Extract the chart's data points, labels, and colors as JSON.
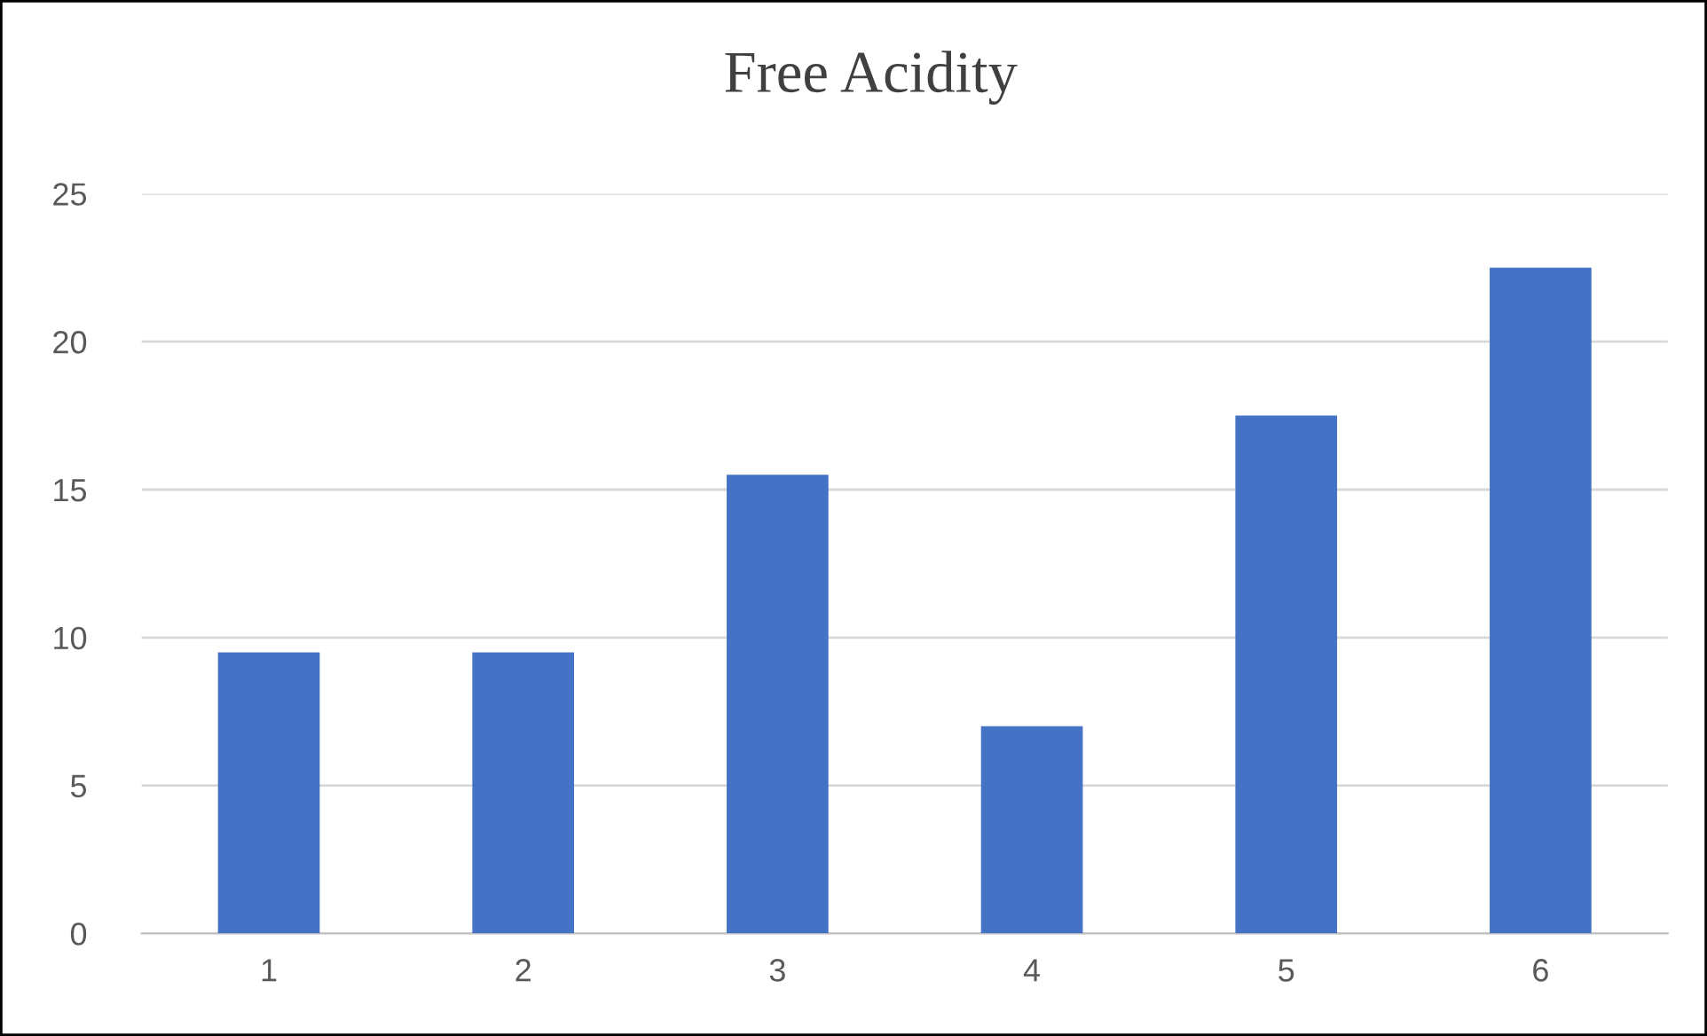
{
  "chart_data": {
    "type": "bar",
    "title": "Free Acidity",
    "categories": [
      "1",
      "2",
      "3",
      "4",
      "5",
      "6"
    ],
    "values": [
      9.5,
      9.5,
      15.5,
      7,
      17.5,
      22.5
    ],
    "color": "#4472c4",
    "ylim": [
      0,
      25
    ],
    "yticks": [
      0,
      5,
      10,
      15,
      20,
      25
    ],
    "grid": "y",
    "legend": false
  }
}
